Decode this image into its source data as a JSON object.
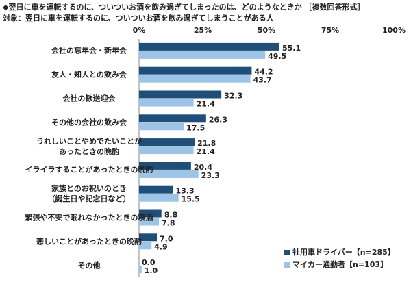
{
  "chart_data": {
    "type": "bar",
    "orientation": "horizontal",
    "title": "◆翌日に車を運転するのに、ついついお酒を飲み過ぎてしまったのは、どのようなときか ［複数回答形式］",
    "subtitle": "対象：翌日に車を運転するのに、ついついお酒を飲み過ぎてしまうことがある人",
    "categories": [
      "会社の忘年会・新年会",
      "友人・知人との飲み会",
      "会社の歓送迎会",
      "その他の会社の飲み会",
      "うれしいことやめでたいことが\nあったときの晩酌",
      "イライラすることがあったときの晩酌",
      "家族とのお祝いのとき\n（誕生日や記念日など）",
      "緊張や不安で眠れなかったときの寝酒",
      "悲しいことがあったときの晩酌",
      "その他"
    ],
    "series": [
      {
        "name": "社用車ドライバー【n=285】",
        "color": "#1f4e79",
        "values": [
          55.1,
          44.2,
          32.3,
          26.3,
          21.8,
          20.4,
          13.3,
          8.8,
          7.0,
          0.0
        ],
        "value_labels": [
          "55.1",
          "44.2",
          "32.3",
          "26.3",
          "21.8",
          "20.4",
          "13.3",
          "8.8",
          "7.0",
          "0.0"
        ]
      },
      {
        "name": "マイカー通勤者【n=103】",
        "color": "#9dc3e6",
        "values": [
          49.5,
          43.7,
          21.4,
          17.5,
          21.4,
          23.3,
          15.5,
          7.8,
          4.9,
          1.0
        ],
        "value_labels": [
          "49.5",
          "43.7",
          "21.4",
          "17.5",
          "21.4",
          "23.3",
          "15.5",
          "7.8",
          "4.9",
          "1.0"
        ]
      }
    ],
    "xlim": [
      0,
      100
    ],
    "xticks": [
      {
        "value": 0,
        "label": "0%"
      },
      {
        "value": 25,
        "label": "25%"
      },
      {
        "value": 50,
        "label": "50%"
      },
      {
        "value": 75,
        "label": "75%"
      },
      {
        "value": 100,
        "label": "100%"
      }
    ],
    "grid": false,
    "legend": "lower-right"
  }
}
